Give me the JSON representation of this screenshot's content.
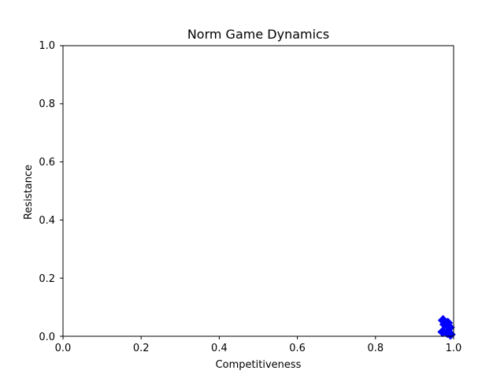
{
  "chart_data": {
    "type": "scatter",
    "title": "Norm Game Dynamics",
    "xlabel": "Competitiveness",
    "ylabel": "Resistance",
    "xlim": [
      0.0,
      1.0
    ],
    "ylim": [
      0.0,
      1.0
    ],
    "xticks": [
      "0.0",
      "0.2",
      "0.4",
      "0.6",
      "0.8",
      "1.0"
    ],
    "yticks": [
      "0.0",
      "0.2",
      "0.4",
      "0.6",
      "0.8",
      "1.0"
    ],
    "grid": false,
    "marker": "diamond",
    "series": [
      {
        "color": "#0000ff",
        "points": [
          {
            "x": 0.973,
            "y": 0.055
          },
          {
            "x": 0.985,
            "y": 0.046
          },
          {
            "x": 0.977,
            "y": 0.041
          },
          {
            "x": 0.972,
            "y": 0.015
          },
          {
            "x": 0.984,
            "y": 0.012
          },
          {
            "x": 0.992,
            "y": 0.006
          },
          {
            "x": 0.99,
            "y": 0.03
          }
        ]
      }
    ]
  }
}
